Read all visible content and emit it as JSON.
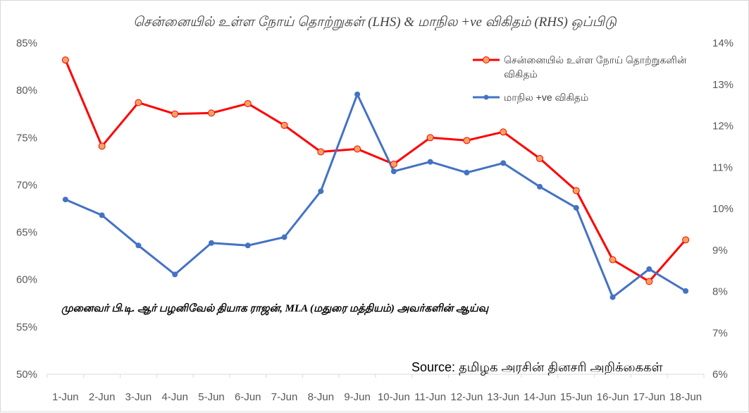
{
  "chart_data": {
    "type": "line",
    "title": "சென்னையில் உள்ள நோய் தொற்றுகள் (LHS) & மாநில +ve விகிதம் (RHS) ஒப்பிடு",
    "categories": [
      "1-Jun",
      "2-Jun",
      "3-Jun",
      "4-Jun",
      "5-Jun",
      "6-Jun",
      "7-Jun",
      "8-Jun",
      "9-Jun",
      "10-Jun",
      "11-Jun",
      "12-Jun",
      "13-Jun",
      "14-Jun",
      "15-Jun",
      "16-Jun",
      "17-Jun",
      "18-Jun"
    ],
    "y_left": {
      "ticks": [
        "50%",
        "55%",
        "60%",
        "65%",
        "70%",
        "75%",
        "80%",
        "85%"
      ],
      "lim": [
        50,
        85
      ]
    },
    "y_right": {
      "ticks": [
        "6%",
        "7%",
        "8%",
        "9%",
        "10%",
        "11%",
        "12%",
        "13%",
        "14%"
      ],
      "lim": [
        6,
        14
      ]
    },
    "series": [
      {
        "name": "சென்னையில் உள்ள நோய் தொற்றுகளின் விகிதம்",
        "axis": "left",
        "color": "#ff0000",
        "marker_color": "#f4a460",
        "values": [
          83.2,
          74.1,
          78.7,
          77.5,
          77.6,
          78.6,
          76.3,
          73.5,
          73.8,
          72.2,
          75.0,
          74.7,
          75.6,
          72.8,
          69.4,
          62.1,
          59.8,
          64.2
        ]
      },
      {
        "name": "மாநில +ve விகிதம்",
        "axis": "right",
        "color": "#4472c4",
        "marker_color": "#4472c4",
        "values": [
          10.22,
          9.84,
          9.11,
          8.41,
          9.17,
          9.11,
          9.31,
          10.42,
          12.76,
          10.9,
          11.13,
          10.87,
          11.1,
          10.53,
          10.02,
          7.86,
          8.54,
          8.01
        ]
      }
    ],
    "annotation": "முனைவர் பி.டி. ஆர் பழனிவேல் தியாக ராஜன், MLA (மதுரை மத்தியம்) அவர்களின் ஆய்வு",
    "source": "Source: தமிழக அரசின் தினசரி அறிக்கைகள்",
    "legend_position": "top-right",
    "grid": false
  }
}
